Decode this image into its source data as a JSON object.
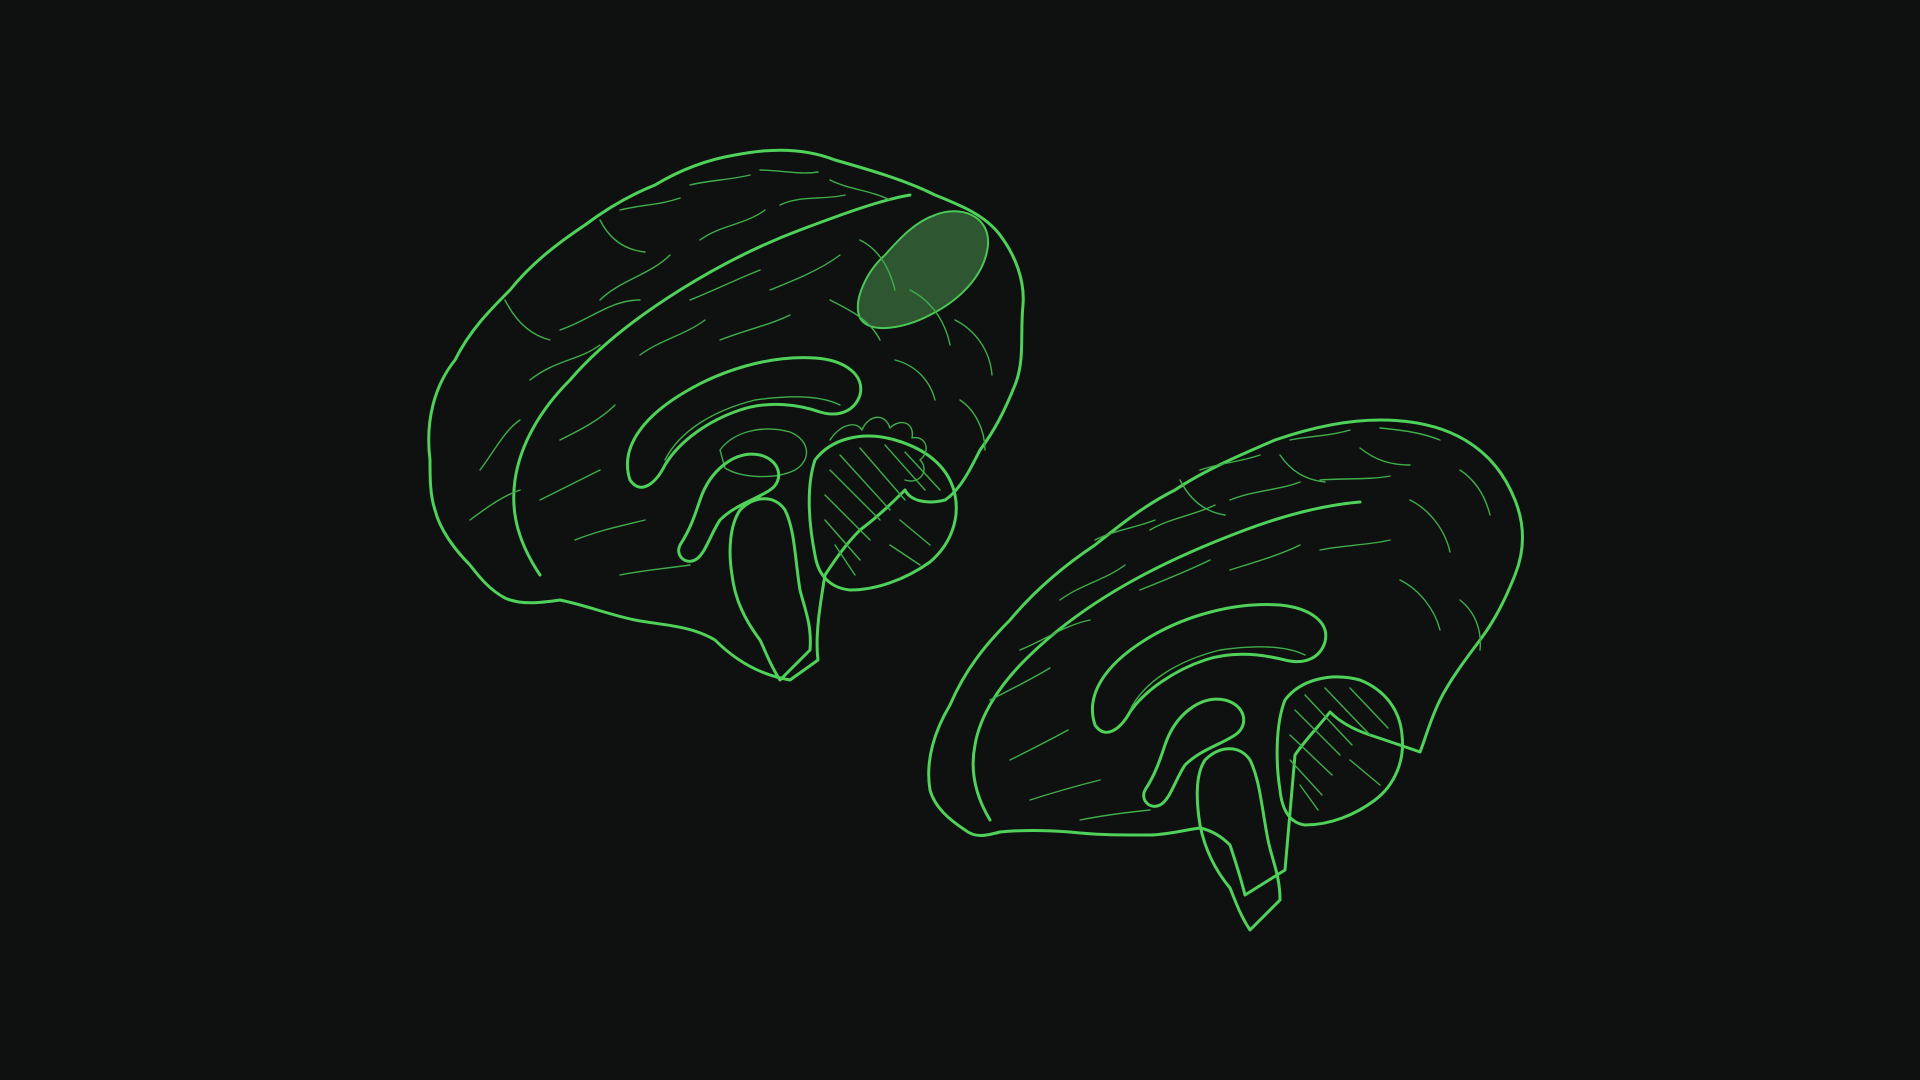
{
  "scene": {
    "description_visible_text": "",
    "colors": {
      "background": "#0f1110",
      "outline": "#4fd15a",
      "outline_soft": "#3fae4a",
      "highlight_fill": "#2f5a33",
      "guide": "#3fb34a"
    },
    "brains": [
      {
        "name": "brain-exploded-back",
        "highlight_region": true
      },
      {
        "name": "brain-exploded-front",
        "highlight_region": false
      }
    ]
  }
}
